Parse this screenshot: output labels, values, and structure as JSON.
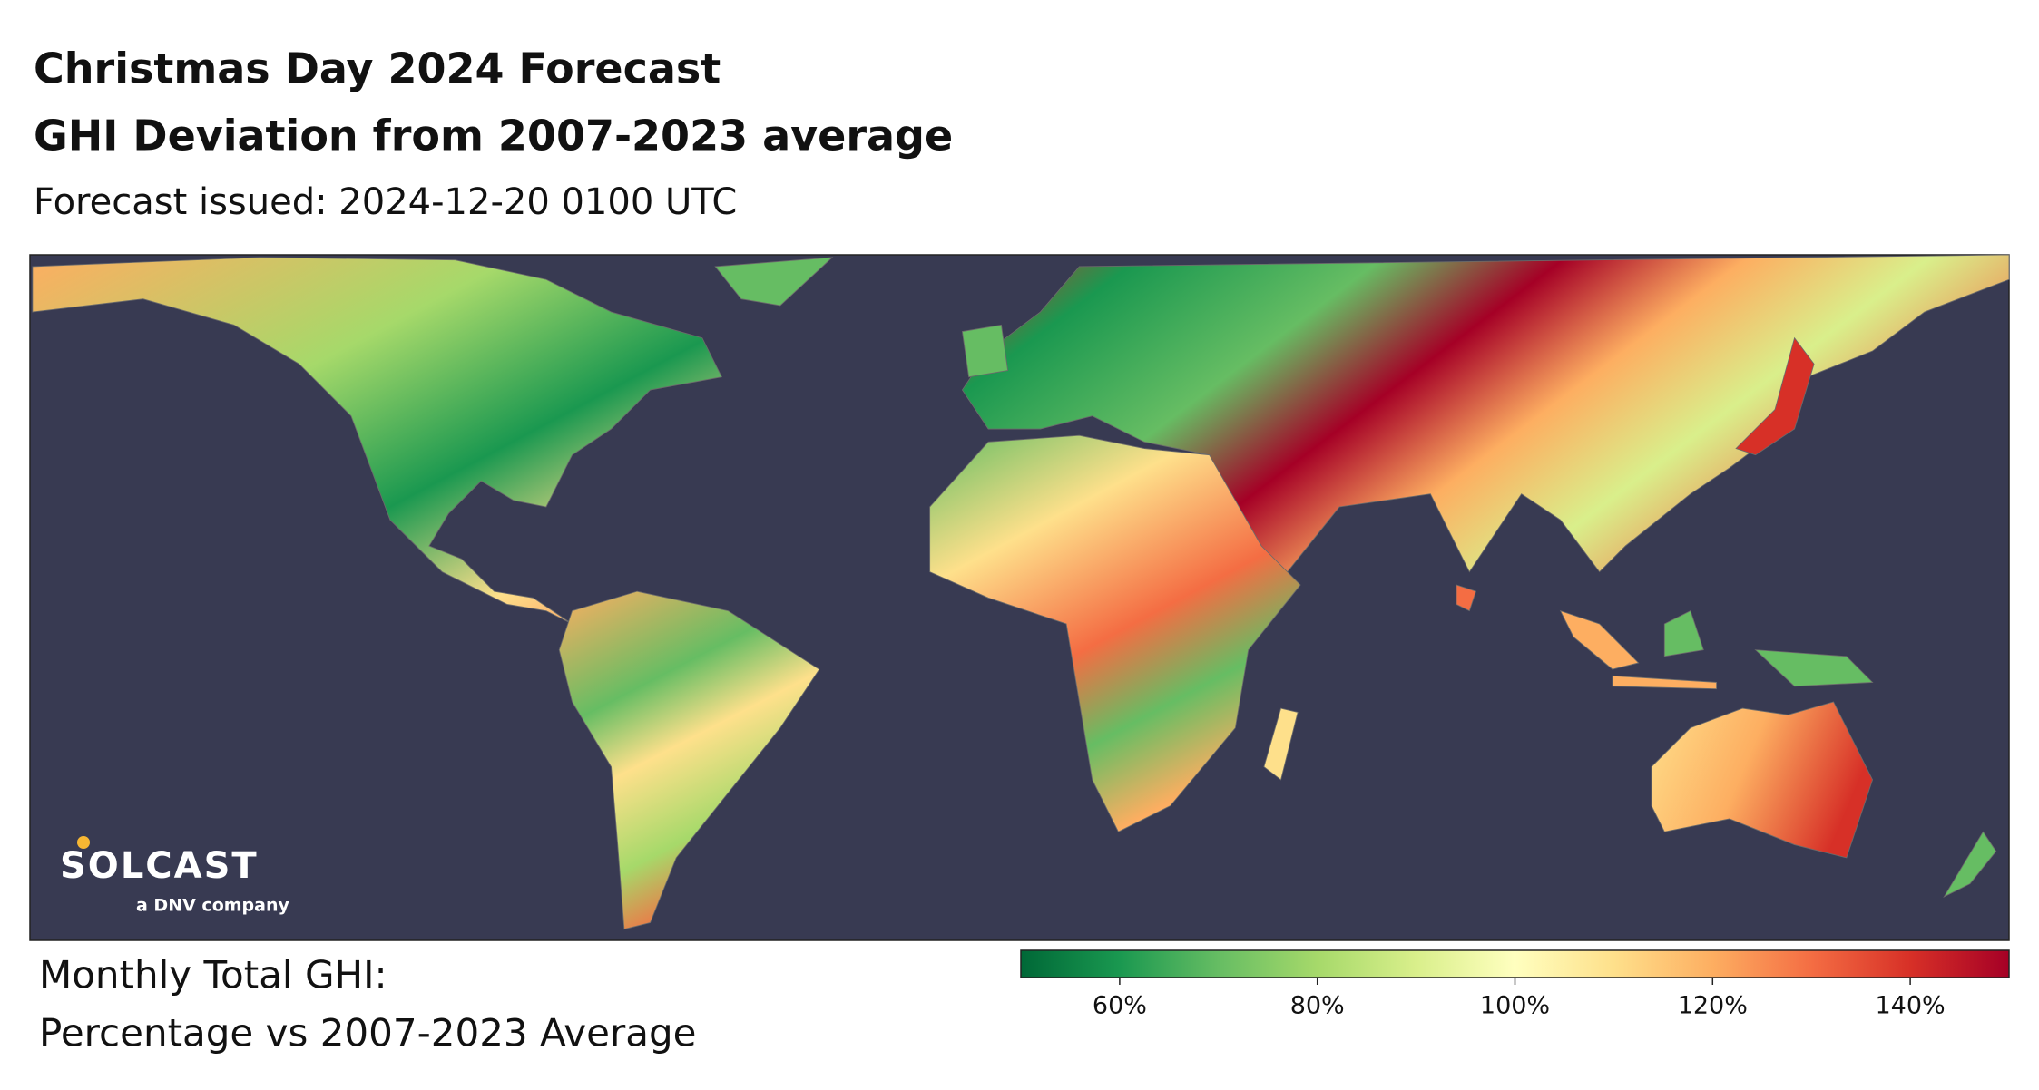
{
  "header": {
    "title": "Christmas Day 2024 Forecast",
    "subtitle": "GHI Deviation from 2007-2023 average",
    "issued": "Forecast issued: 2024-12-20 0100 UTC"
  },
  "logo": {
    "name": "SOLCAST",
    "tagline": "a DNV company"
  },
  "legend": {
    "title_line1": "Monthly Total GHI:",
    "title_line2": "Percentage vs 2007-2023 Average"
  },
  "colorbar": {
    "type": "colorbar",
    "vlim": [
      50,
      150
    ],
    "ticks": [
      {
        "value": 60,
        "label": "60%"
      },
      {
        "value": 80,
        "label": "80%"
      },
      {
        "value": 100,
        "label": "100%"
      },
      {
        "value": 120,
        "label": "120%"
      },
      {
        "value": 140,
        "label": "140%"
      }
    ],
    "colors": [
      "#006837",
      "#1a9850",
      "#66bd63",
      "#a6d96a",
      "#d9ef8b",
      "#ffffbf",
      "#fee08b",
      "#fdae61",
      "#f46d43",
      "#d73027",
      "#a50026"
    ]
  }
}
